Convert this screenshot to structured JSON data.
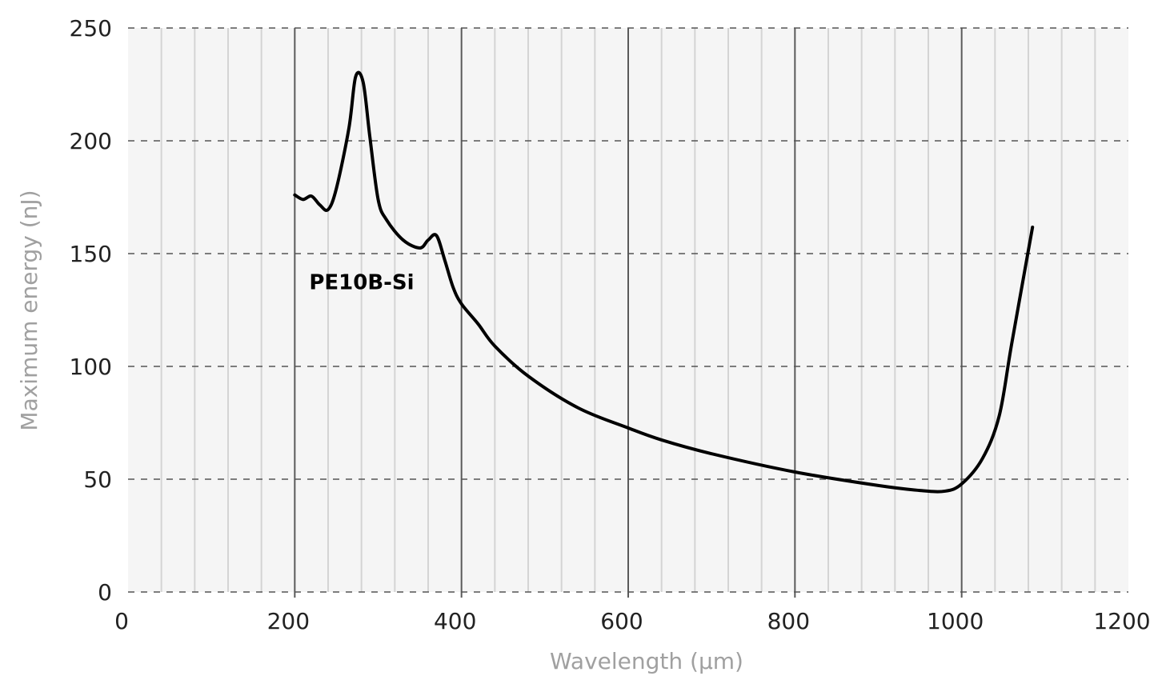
{
  "chart_data": {
    "type": "line",
    "title": "",
    "xlabel": "Wavelength (µm)",
    "ylabel": "Maximum energy (nJ)",
    "xlim": [
      0,
      1200
    ],
    "ylim": [
      0,
      250
    ],
    "xticks": [
      0,
      200,
      400,
      600,
      800,
      1000,
      1200
    ],
    "yticks": [
      0,
      50,
      100,
      150,
      200,
      250
    ],
    "x_minor_step": 40,
    "grid": true,
    "background": "#f5f5f5",
    "series": [
      {
        "name": "PE10B-Si",
        "color": "#000000",
        "x": [
          200,
          210,
          220,
          230,
          240,
          250,
          265,
          273,
          282,
          290,
          300,
          310,
          330,
          350,
          360,
          370,
          380,
          390,
          400,
          420,
          440,
          480,
          540,
          600,
          640,
          700,
          800,
          900,
          950,
          980,
          1000,
          1025,
          1045,
          1060,
          1085
        ],
        "y": [
          176,
          174,
          175.5,
          171.6,
          169.5,
          179,
          205.7,
          228.4,
          226,
          202,
          174,
          165,
          156,
          152.5,
          156,
          158,
          147,
          135,
          127.7,
          118.8,
          109,
          95.7,
          81.6,
          72.7,
          67.4,
          61.3,
          53.2,
          47.2,
          45,
          44.7,
          47.9,
          59.2,
          78,
          110,
          161.7
        ]
      }
    ],
    "annotations": [
      {
        "text": "PE10B-Si",
        "x": 200,
        "y": 137
      }
    ]
  }
}
